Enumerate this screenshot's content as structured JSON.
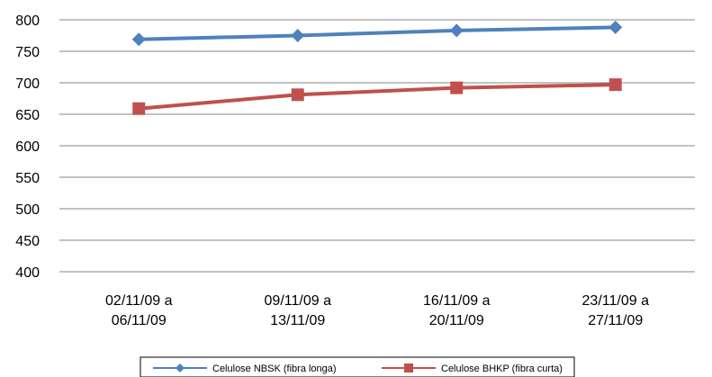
{
  "chart_data": {
    "type": "line",
    "title": "",
    "xlabel": "",
    "ylabel": "",
    "categories": [
      [
        "02/11/09 a",
        "06/11/09"
      ],
      [
        "09/11/09 a",
        "13/11/09"
      ],
      [
        "16/11/09 a",
        "20/11/09"
      ],
      [
        "23/11/09 a",
        "27/11/09"
      ]
    ],
    "ylim": [
      400,
      800
    ],
    "yticks": [
      400,
      450,
      500,
      550,
      600,
      650,
      700,
      750,
      800
    ],
    "grid": true,
    "legend_position": "bottom",
    "series": [
      {
        "name": "Celulose NBSK (fibra longa)",
        "values": [
          769,
          775,
          783,
          788
        ],
        "color": "#4f81bd",
        "marker": "diamond"
      },
      {
        "name": "Celulose BHKP (fibra curta)",
        "values": [
          659,
          681,
          692,
          697
        ],
        "color": "#c0504d",
        "marker": "square"
      }
    ]
  }
}
